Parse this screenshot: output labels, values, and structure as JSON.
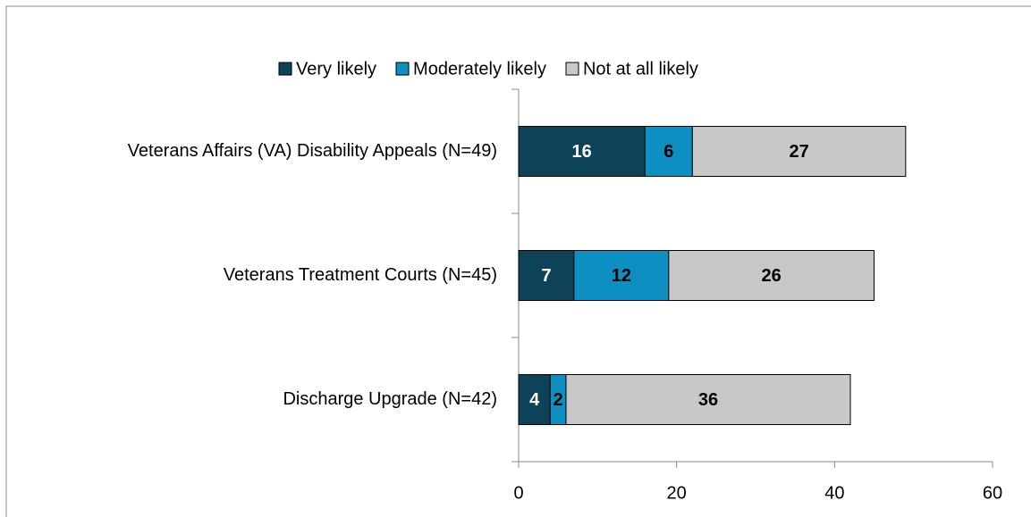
{
  "chart_data": {
    "type": "stacked_bar_horizontal",
    "categories": [
      "Veterans Affairs (VA) Disability Appeals (N=49)",
      "Veterans Treatment Courts (N=45)",
      "Discharge Upgrade (N=42)"
    ],
    "series": [
      {
        "name": "Very likely",
        "color": "#0d4259",
        "values": [
          16,
          7,
          4
        ]
      },
      {
        "name": "Moderately likely",
        "color": "#0e8fc1",
        "values": [
          6,
          12,
          2
        ]
      },
      {
        "name": "Not at all likely",
        "color": "#c8c8c8",
        "values": [
          27,
          26,
          36
        ]
      }
    ],
    "xlim": [
      0,
      60
    ],
    "xticks": [
      0,
      20,
      40,
      60
    ],
    "legend": "top"
  }
}
